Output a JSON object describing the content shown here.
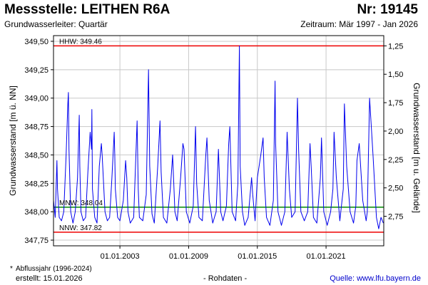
{
  "header": {
    "title": "Messstelle: LEITHEN R6A",
    "nr": "Nr: 19145",
    "subtitle": "Grundwasserleiter: Quartär",
    "period": "Zeitraum: Mär 1997 - Jan 2026"
  },
  "footer": {
    "note_star": "*",
    "note": "Abflussjahr (1996-2024)",
    "created": "erstellt:  15.01.2026",
    "raw": "- Rohdaten -",
    "source": "Quelle:  www.lfu.bayern.de"
  },
  "colors": {
    "series": "#0000ee",
    "hhw": "#ee0000",
    "nnw": "#ee0000",
    "mnw": "#008800",
    "frame": "#000000"
  },
  "chart_data": {
    "type": "line",
    "xlabel": "",
    "ylabel": "Grundwasserstand [m ü. NN]",
    "ylabel_right": "Grundwasserstand [m u. Gelände]",
    "ylim": [
      347.7,
      349.55
    ],
    "y_ticks": [
      "349,50",
      "349,25",
      "349,00",
      "348,75",
      "348,50",
      "348,25",
      "348,00",
      "347,75"
    ],
    "y_ticks_right": [
      "1,25",
      "1,50",
      "1,75",
      "2,00",
      "2,25",
      "2,50",
      "2,75"
    ],
    "x_ticks": [
      "01.01.2003",
      "01.01.2009",
      "01.01.2015",
      "01.01.2021"
    ],
    "x_tick_years": [
      2003,
      2009,
      2015,
      2021
    ],
    "xlim": [
      1997.2,
      2026.04
    ],
    "right_axis_reference": 350.71,
    "reference_lines": [
      {
        "key": "hhw",
        "label": "HHW: 349.46",
        "value": 349.46
      },
      {
        "key": "mnw",
        "label": "MNW: 348.04",
        "value": 348.04
      },
      {
        "key": "nnw",
        "label": "NNW: 347.82",
        "value": 347.82
      }
    ],
    "series": [
      {
        "x": [
          1997.2,
          1997.35,
          1997.5,
          1997.55,
          1997.7,
          1997.9,
          1998.1,
          1998.3,
          1998.45,
          1998.5,
          1998.55,
          1998.7,
          1998.9,
          1999.1,
          1999.3,
          1999.45,
          1999.5,
          1999.6,
          1999.8,
          2000.0,
          2000.2,
          2000.4,
          2000.52,
          2000.55,
          2000.6,
          2000.8,
          2001.0,
          2001.2,
          2001.38,
          2001.45,
          2001.5,
          2001.7,
          2001.9,
          2002.1,
          2002.3,
          2002.5,
          2002.55,
          2002.6,
          2002.8,
          2003.0,
          2003.3,
          2003.5,
          2003.6,
          2003.7,
          2003.9,
          2004.2,
          2004.5,
          2004.6,
          2004.7,
          2005.0,
          2005.3,
          2005.5,
          2005.6,
          2005.8,
          2006.0,
          2006.3,
          2006.5,
          2006.6,
          2006.8,
          2007.1,
          2007.4,
          2007.6,
          2007.8,
          2008.0,
          2008.3,
          2008.5,
          2008.6,
          2008.8,
          2009.1,
          2009.4,
          2009.6,
          2009.7,
          2009.9,
          2010.2,
          2010.5,
          2010.6,
          2010.8,
          2011.1,
          2011.4,
          2011.6,
          2011.8,
          2012.0,
          2012.3,
          2012.5,
          2012.6,
          2012.8,
          2013.1,
          2013.3,
          2013.43,
          2013.5,
          2013.7,
          2013.9,
          2014.2,
          2014.5,
          2014.6,
          2014.8,
          2015.0,
          2015.3,
          2015.5,
          2015.6,
          2015.8,
          2016.1,
          2016.4,
          2016.55,
          2016.6,
          2016.8,
          2017.1,
          2017.4,
          2017.6,
          2017.8,
          2018.0,
          2018.3,
          2018.5,
          2018.6,
          2018.8,
          2019.1,
          2019.4,
          2019.6,
          2019.7,
          2019.9,
          2020.2,
          2020.5,
          2020.6,
          2020.8,
          2021.1,
          2021.4,
          2021.6,
          2021.7,
          2021.9,
          2022.2,
          2022.5,
          2022.6,
          2022.8,
          2023.1,
          2023.4,
          2023.6,
          2023.7,
          2023.9,
          2024.2,
          2024.5,
          2024.6,
          2024.8,
          2025.1,
          2025.4,
          2025.6,
          2025.8,
          2026.0
        ],
        "y": [
          348.1,
          347.95,
          348.45,
          348.2,
          347.95,
          347.92,
          348.0,
          348.5,
          348.95,
          349.05,
          348.55,
          348.0,
          347.9,
          348.0,
          348.3,
          348.85,
          348.4,
          348.0,
          347.92,
          347.95,
          348.35,
          348.7,
          348.55,
          348.9,
          348.2,
          347.95,
          347.9,
          348.4,
          348.6,
          348.5,
          348.4,
          348.0,
          347.92,
          347.95,
          348.3,
          348.7,
          348.5,
          348.2,
          347.95,
          347.92,
          348.1,
          348.45,
          348.3,
          348.0,
          347.9,
          347.95,
          348.8,
          348.2,
          347.95,
          347.92,
          348.15,
          349.25,
          348.4,
          347.98,
          347.9,
          348.4,
          348.8,
          348.35,
          347.95,
          347.9,
          348.2,
          348.5,
          348.0,
          347.92,
          348.3,
          348.6,
          348.55,
          348.0,
          347.9,
          348.05,
          348.75,
          348.25,
          347.95,
          347.92,
          348.5,
          348.65,
          348.1,
          347.9,
          348.0,
          348.55,
          348.0,
          347.92,
          348.05,
          348.6,
          348.75,
          348.0,
          347.92,
          348.25,
          349.46,
          348.4,
          348.0,
          347.88,
          347.95,
          348.3,
          348.15,
          347.92,
          348.3,
          348.5,
          348.65,
          348.3,
          347.95,
          347.88,
          348.1,
          349.15,
          348.6,
          348.0,
          347.88,
          348.0,
          348.7,
          348.2,
          347.95,
          348.0,
          349.0,
          348.55,
          348.0,
          347.92,
          348.0,
          348.6,
          348.4,
          347.95,
          347.9,
          348.3,
          348.65,
          348.0,
          347.88,
          348.0,
          348.2,
          348.7,
          348.3,
          347.92,
          348.2,
          348.95,
          348.4,
          348.0,
          347.9,
          348.05,
          348.45,
          348.6,
          348.1,
          347.92,
          348.0,
          349.0,
          348.5,
          347.95,
          347.85,
          347.95,
          347.9
        ]
      }
    ]
  }
}
